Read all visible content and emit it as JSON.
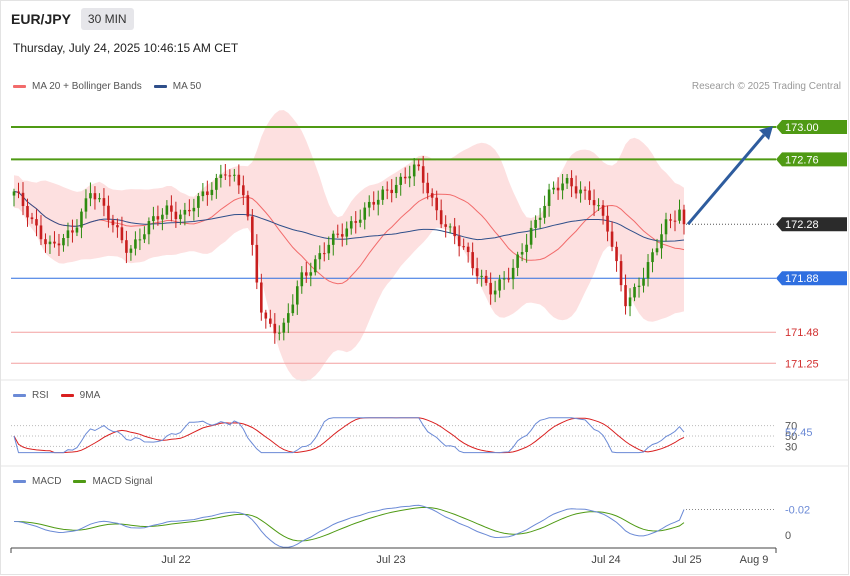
{
  "header": {
    "symbol": "EUR/JPY",
    "timeframe": "30 MIN",
    "timestamp": "Thursday, July 24, 2025 10:46:15 AM CET",
    "copyright": "Research © 2025 Trading Central"
  },
  "colors": {
    "ma20": "#f26b6b",
    "band_fill": "#fde0e0",
    "ma50": "#2f4f8a",
    "resistance": "#4f9a14",
    "pivot": "#2f6fe0",
    "support": "#f4a0a0",
    "current": "#2b2b2b",
    "arrow": "#2e5c9e",
    "candle_up": "#2e8b10",
    "candle_down": "#c81e1e",
    "rsi": "#6b8ad6",
    "rsi_ma": "#d92020",
    "macd": "#6b8ad6",
    "macd_signal": "#4f9a14"
  },
  "price_panel": {
    "legend": [
      {
        "label": "MA 20 + Bollinger Bands",
        "color": "#f26b6b"
      },
      {
        "label": "MA 50",
        "color": "#2f4f8a"
      }
    ],
    "levels": [
      {
        "value": 173.0,
        "label": "173.00",
        "type": "resistance"
      },
      {
        "value": 172.76,
        "label": "172.76",
        "type": "resistance"
      },
      {
        "value": 172.28,
        "label": "172.28",
        "type": "current"
      },
      {
        "value": 171.88,
        "label": "171.88",
        "type": "pivot"
      },
      {
        "value": 171.48,
        "label": "171.48",
        "type": "support"
      },
      {
        "value": 171.25,
        "label": "171.25",
        "type": "support"
      }
    ]
  },
  "rsi_panel": {
    "legend": [
      {
        "label": "RSI",
        "color": "#6b8ad6"
      },
      {
        "label": "9MA",
        "color": "#d92020"
      }
    ],
    "levels": [
      {
        "value": 70,
        "label": "70"
      },
      {
        "value": 50,
        "label": "50"
      },
      {
        "value": 30,
        "label": "30"
      }
    ],
    "current_label": "57.45"
  },
  "macd_panel": {
    "legend": [
      {
        "label": "MACD",
        "color": "#6b8ad6"
      },
      {
        "label": "MACD Signal",
        "color": "#4f9a14"
      }
    ],
    "levels": [
      {
        "value": 0,
        "label": "0"
      }
    ],
    "current_label": "-0.02"
  },
  "x_axis": {
    "labels": [
      "Jul 22",
      "Jul 23",
      "Jul 24",
      "Jul 25",
      "Aug 9"
    ]
  },
  "chart_data": {
    "type": "candlestick",
    "series_anchor_close": [
      172.5,
      172.3,
      172.1,
      172.2,
      172.55,
      172.3,
      172.1,
      172.25,
      172.4,
      172.35,
      172.5,
      172.7,
      172.5,
      171.6,
      171.45,
      171.9,
      172.05,
      172.2,
      172.35,
      172.45,
      172.6,
      172.7,
      172.4,
      172.2,
      171.95,
      171.8,
      171.9,
      172.25,
      172.5,
      172.6,
      172.5,
      172.25,
      171.7,
      171.9,
      172.3,
      172.4
    ],
    "x_ticks": [
      "Jul 22",
      "Jul 23",
      "Jul 24",
      "Jul 25",
      "Aug 9"
    ],
    "y_ticks": [
      173.0,
      172.76,
      172.28,
      171.88,
      171.48,
      171.25
    ],
    "current_price": 172.28,
    "rsi_current": 57.45,
    "macd_current": -0.02
  }
}
